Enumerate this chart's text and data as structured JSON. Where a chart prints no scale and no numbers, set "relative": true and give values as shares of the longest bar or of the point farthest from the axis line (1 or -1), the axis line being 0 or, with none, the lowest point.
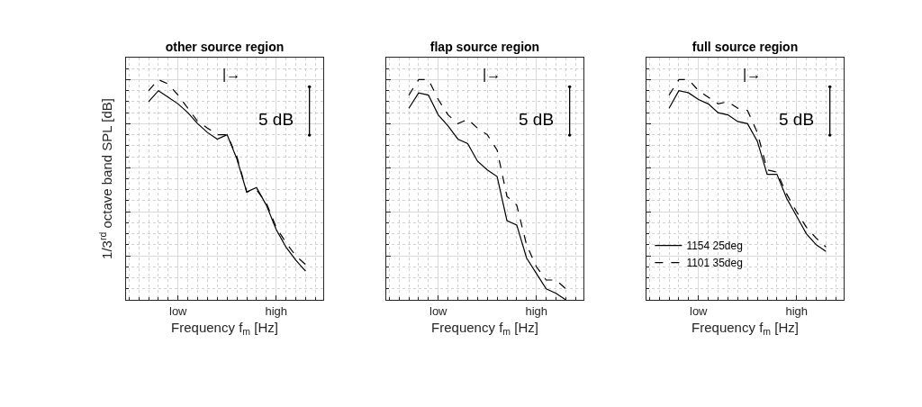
{
  "chart_data": [
    {
      "type": "line",
      "title": "other source region",
      "xlabel": "Frequency f$_{m}$ [Hz]",
      "ylabel": "1/3$^{rd}$ octave band SPL [dB]",
      "relative": true,
      "categories": [
        null,
        null,
        null,
        "low",
        null,
        null,
        null,
        null,
        null,
        null,
        null,
        null,
        null,
        "high",
        null,
        null,
        null
      ],
      "tick_labels": "x",
      "grid": true,
      "legend": false,
      "marker": "none",
      "annotations": [
        "|→",
        "5 dB"
      ],
      "series": [
        {
          "color": "#000000",
          "line_style": "solid",
          "values": [
            0.9,
            0.95,
            0.92,
            0.89,
            0.85,
            0.8,
            0.76,
            0.73,
            0.75,
            0.64,
            0.49,
            0.51,
            0.43,
            0.32,
            0.24,
            0.18,
            0.13
          ]
        },
        {
          "color": "#000000",
          "line_style": "dashed",
          "values": [
            0.95,
            1,
            0.98,
            0.93,
            0.87,
            0.81,
            0.78,
            0.75,
            0.75,
            0.65,
            0.49,
            0.5,
            0.44,
            0.33,
            0.26,
            0.2,
            0.16
          ]
        }
      ]
    },
    {
      "type": "line",
      "title": "flap source region",
      "xlabel": "Frequency f$_{m}$ [Hz]",
      "relative": true,
      "categories": [
        null,
        null,
        null,
        "low",
        null,
        null,
        null,
        null,
        null,
        null,
        null,
        null,
        null,
        "high",
        null,
        null,
        null
      ],
      "tick_labels": "x",
      "grid": true,
      "legend": false,
      "marker": "none",
      "annotations": [
        "|→",
        "5 dB"
      ],
      "series": [
        {
          "color": "#000000",
          "line_style": "solid",
          "values": [
            0.87,
            0.94,
            0.93,
            0.84,
            0.79,
            0.73,
            0.71,
            0.63,
            0.59,
            0.56,
            0.36,
            0.34,
            0.19,
            0.12,
            0.05,
            0.03,
            0
          ]
        },
        {
          "color": "#000000",
          "line_style": "dashed",
          "values": [
            0.93,
            1,
            1,
            0.91,
            0.84,
            0.8,
            0.82,
            0.78,
            0.75,
            0.68,
            0.47,
            0.43,
            0.25,
            0.15,
            0.09,
            0.09,
            0.05
          ]
        }
      ]
    },
    {
      "type": "line",
      "title": "full source region",
      "xlabel": "Frequency f$_{m}$ [Hz]",
      "relative": true,
      "categories": [
        null,
        null,
        null,
        "low",
        null,
        null,
        null,
        null,
        null,
        null,
        null,
        null,
        null,
        "high",
        null,
        null,
        null
      ],
      "tick_labels": "x",
      "grid": true,
      "legend": "bottom left",
      "marker": "none",
      "annotations": [
        "|→",
        "5 dB"
      ],
      "series": [
        {
          "name": "1154 25deg",
          "color": "#000000",
          "line_style": "solid",
          "values": [
            0.87,
            0.95,
            0.94,
            0.91,
            0.89,
            0.85,
            0.84,
            0.81,
            0.8,
            0.72,
            0.57,
            0.57,
            0.46,
            0.38,
            0.3,
            0.25,
            0.22
          ]
        },
        {
          "name": "1101 35deg",
          "color": "#000000",
          "line_style": "dashed",
          "values": [
            0.93,
            1,
            1,
            0.95,
            0.92,
            0.89,
            0.9,
            0.87,
            0.86,
            0.76,
            0.59,
            0.58,
            0.48,
            0.4,
            0.33,
            0.28,
            0.24
          ]
        }
      ]
    }
  ]
}
